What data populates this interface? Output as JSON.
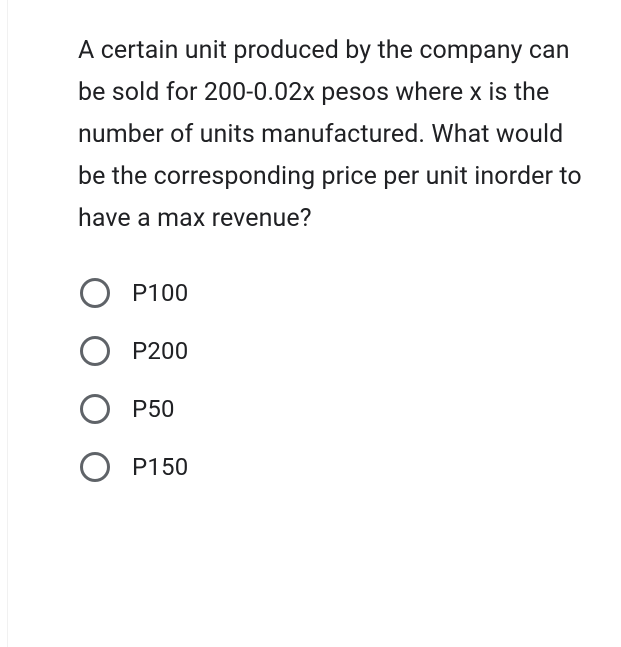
{
  "question": {
    "text": "A certain unit produced by the company can be sold for 200-0.02x pesos where x is the number of units manufactured. What would be the corresponding price per unit inorder to have a max revenue?"
  },
  "options": [
    {
      "label": "P100"
    },
    {
      "label": "P200"
    },
    {
      "label": "P50"
    },
    {
      "label": "P150"
    }
  ],
  "colors": {
    "text": "#202124",
    "radio_border": "#5f6368",
    "background": "#ffffff"
  },
  "typography": {
    "question_fontsize": 25,
    "question_lineheight": 42,
    "option_fontsize": 24
  }
}
